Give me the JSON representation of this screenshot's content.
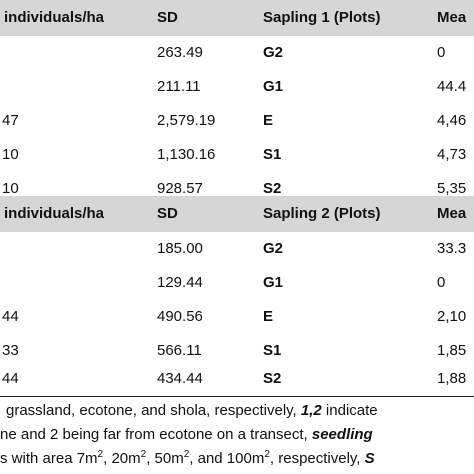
{
  "table": {
    "header1": {
      "col1": "individuals/ha",
      "col2": "SD",
      "col3": "Sapling 1 (Plots)",
      "col4": "Mea"
    },
    "rows1": [
      {
        "c1": "",
        "c2": "263.49",
        "c3": "G2",
        "c4": "0"
      },
      {
        "c1": "",
        "c2": "211.11",
        "c3": "G1",
        "c4": "44.4"
      },
      {
        "c1": "47",
        "c2": "2,579.19",
        "c3": "E",
        "c4": "4,46"
      },
      {
        "c1": "10",
        "c2": "1,130.16",
        "c3": "S1",
        "c4": "4,73"
      },
      {
        "c1": "10",
        "c2": "928.57",
        "c3": "S2",
        "c4": "5,35"
      }
    ],
    "header2": {
      "col1": "individuals/ha",
      "col2": "SD",
      "col3": "Sapling 2 (Plots)",
      "col4": "Mea"
    },
    "rows2": [
      {
        "c1": "",
        "c2": "185.00",
        "c3": "G2",
        "c4": "33.3"
      },
      {
        "c1": "",
        "c2": "129.44",
        "c3": "G1",
        "c4": "0"
      },
      {
        "c1": "44",
        "c2": "490.56",
        "c3": "E",
        "c4": "2,10"
      },
      {
        "c1": "33",
        "c2": "566.11",
        "c3": "S1",
        "c4": "1,85"
      },
      {
        "c1": "44",
        "c2": "434.44",
        "c3": "S2",
        "c4": "1,88"
      }
    ]
  },
  "footnote": {
    "line1_a": "grassland, ecotone, and shola, respectively, ",
    "line1_b": "1,2",
    "line1_c": " indicate",
    "line2_a": "ne and 2 being far from ecotone on a transect, ",
    "line2_b": "seedling",
    "line3_a": "s with area 7m",
    "line3_b": ", 20m",
    "line3_c": ", 50m",
    "line3_d": ", and 100m",
    "line3_e": ", respectively, ",
    "line3_f": "S",
    "sup2": "2"
  }
}
